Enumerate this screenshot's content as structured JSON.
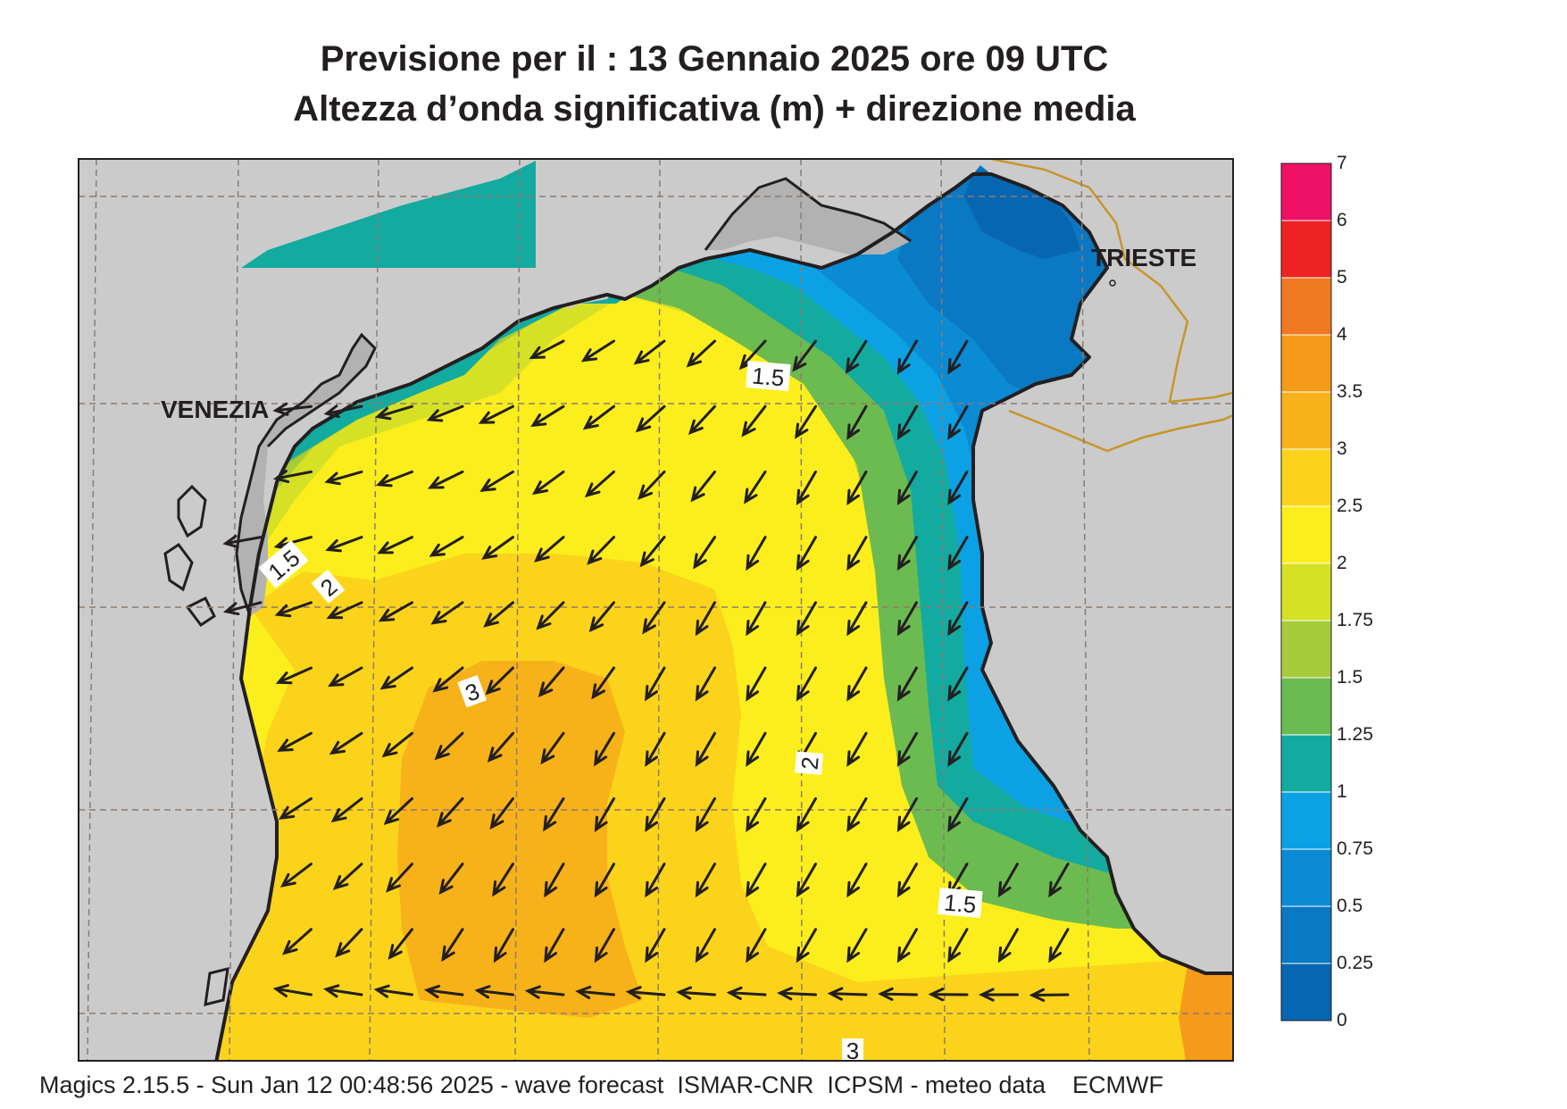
{
  "title": {
    "line1": "Previsione per il  :  13  Gennaio  2025   ore 09 UTC",
    "line2": "Altezza d’onda significativa (m) + direzione media"
  },
  "places": {
    "venezia": "VENEZIA",
    "trieste": "TRIESTE"
  },
  "contour_labels": [
    "1.5",
    "1.5",
    "2",
    "3",
    "2",
    "1.5",
    "3"
  ],
  "legend": {
    "labels": [
      "7",
      "6",
      "5",
      "4",
      "3.5",
      "3",
      "2.5",
      "2",
      "1.75",
      "1.5",
      "1.25",
      "1",
      "0.75",
      "0.5",
      "0.25",
      "0"
    ],
    "colors": [
      "#ee1166",
      "#ee2222",
      "#f07a22",
      "#f59a1a",
      "#f7b119",
      "#fbd31a",
      "#fbee1c",
      "#d6e025",
      "#a7cc3b",
      "#6cbb50",
      "#13aaa0",
      "#0ca1e4",
      "#0a8bd4",
      "#0a78c2",
      "#0766b2"
    ]
  },
  "colors": {
    "land": "#cbcbcb",
    "coast": "#231f20",
    "border": "#c8952a",
    "grid": "#8c7b70",
    "arrow": "#231f20"
  },
  "footer": "Magics 2.15.5 - Sun Jan 12 00:48:56 2025 - wave forecast  ISMAR-CNR  ICPSM - meteo data    ECMWF"
}
